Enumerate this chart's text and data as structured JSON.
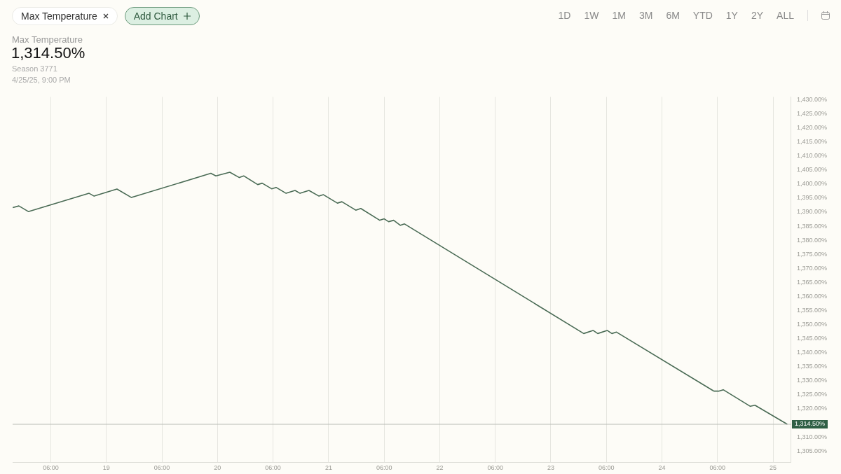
{
  "chart_data": {
    "type": "line",
    "title": "Max Temperature",
    "subtitle": "1,314.50%",
    "annotations": [
      "Add Chart",
      "1D",
      "1W",
      "1M",
      "3M",
      "6M",
      "YTD",
      "1Y",
      "2Y",
      "ALL",
      "Season 3771",
      "4/25/25, 9:00 PM"
    ],
    "series": [
      {
        "color": "#4a6b55",
        "x": [
          "--04-18T03:47",
          "--04-18T05:06",
          "--04-18T07:09",
          "--04-18T20:16",
          "--04-18T21:21",
          "--04-19T02:17",
          "--04-19T05:25",
          "--04-19T22:34",
          "--04-19T23:39",
          "--04-20T02:40",
          "--04-20T04:43",
          "--04-20T05:40",
          "--04-20T08:41",
          "--04-20T09:39",
          "--04-20T11:42",
          "--04-20T12:39",
          "--04-20T14:49",
          "--04-20T16:45",
          "--04-20T17:50",
          "--04-20T19:45",
          "--04-20T21:55",
          "--04-20T22:53",
          "--04-21T01:54",
          "--04-21T02:52",
          "--04-21T05:52",
          "--04-21T06:57",
          "--04-21T11:03",
          "--04-21T12:01",
          "--04-21T12:58",
          "--04-21T14:03",
          "--04-21T15:30",
          "--04-21T16:24",
          "--04-23T07:06",
          "--04-23T09:07",
          "--04-23T10:08",
          "--04-23T12:10",
          "--04-23T13:11",
          "--04-23T14:11",
          "--04-24T11:13",
          "--04-24T12:14",
          "--04-24T13:14",
          "--04-24T19:05",
          "--04-24T20:05",
          "--04-25T03:05"
        ],
        "values": [
          1391.6,
          1392.2,
          1390.2,
          1396.7,
          1395.7,
          1398.2,
          1395.2,
          1403.8,
          1402.9,
          1404.2,
          1402.3,
          1402.9,
          1399.8,
          1400.3,
          1398.3,
          1398.8,
          1396.7,
          1397.7,
          1396.7,
          1397.7,
          1395.7,
          1396.2,
          1393.2,
          1393.7,
          1390.7,
          1391.3,
          1387.1,
          1387.6,
          1386.6,
          1387.1,
          1385.3,
          1385.8,
          1346.8,
          1347.9,
          1346.8,
          1347.9,
          1346.8,
          1347.3,
          1326.3,
          1326.3,
          1326.8,
          1320.9,
          1321.3,
          1314.5
        ]
      }
    ],
    "xlim": [
      "--04-18T03:45",
      "--04-25T03:55"
    ],
    "xticks": [
      {
        "value": "--04-18T12:00",
        "label": "06:00"
      },
      {
        "value": "--04-19",
        "label": "19"
      },
      {
        "value": "--04-19T12:00",
        "label": "06:00"
      },
      {
        "value": "--04-20",
        "label": "20"
      },
      {
        "value": "--04-20T12:00",
        "label": "06:00"
      },
      {
        "value": "--04-21",
        "label": "21"
      },
      {
        "value": "--04-21T12:00",
        "label": "06:00"
      },
      {
        "value": "--04-22",
        "label": "22"
      },
      {
        "value": "--04-22T12:00",
        "label": "06:00"
      },
      {
        "value": "--04-23",
        "label": "23"
      },
      {
        "value": "--04-23T12:00",
        "label": "06:00"
      },
      {
        "value": "--04-24",
        "label": "24"
      },
      {
        "value": "--04-24T12:00",
        "label": "06:00"
      },
      {
        "value": "--04-25",
        "label": "25"
      }
    ],
    "ylim": [
      1301,
      1431
    ],
    "yticks": [
      {
        "value": 1305,
        "label": "1,305.00%"
      },
      {
        "value": 1310,
        "label": "1,310.00%"
      },
      {
        "value": 1320,
        "label": "1,320.00%"
      },
      {
        "value": 1325,
        "label": "1,325.00%"
      },
      {
        "value": 1330,
        "label": "1,330.00%"
      },
      {
        "value": 1335,
        "label": "1,335.00%"
      },
      {
        "value": 1340,
        "label": "1,340.00%"
      },
      {
        "value": 1345,
        "label": "1,345.00%"
      },
      {
        "value": 1350,
        "label": "1,350.00%"
      },
      {
        "value": 1355,
        "label": "1,355.00%"
      },
      {
        "value": 1360,
        "label": "1,360.00%"
      },
      {
        "value": 1365,
        "label": "1,365.00%"
      },
      {
        "value": 1370,
        "label": "1,370.00%"
      },
      {
        "value": 1375,
        "label": "1,375.00%"
      },
      {
        "value": 1380,
        "label": "1,380.00%"
      },
      {
        "value": 1385,
        "label": "1,385.00%"
      },
      {
        "value": 1390,
        "label": "1,390.00%"
      },
      {
        "value": 1395,
        "label": "1,395.00%"
      },
      {
        "value": 1400,
        "label": "1,400.00%"
      },
      {
        "value": 1405,
        "label": "1,405.00%"
      },
      {
        "value": 1410,
        "label": "1,410.00%"
      },
      {
        "value": 1415,
        "label": "1,415.00%"
      },
      {
        "value": 1420,
        "label": "1,420.00%"
      },
      {
        "value": 1425,
        "label": "1,425.00%"
      },
      {
        "value": 1430,
        "label": "1,430.00%"
      }
    ],
    "ref_lines": [
      {
        "axis": "y",
        "value": 1314.5,
        "label": "1,314.50%",
        "color": "#b9bcb5"
      }
    ],
    "grid": "x",
    "legend": false,
    "marker": "none",
    "line_style": "solid"
  }
}
